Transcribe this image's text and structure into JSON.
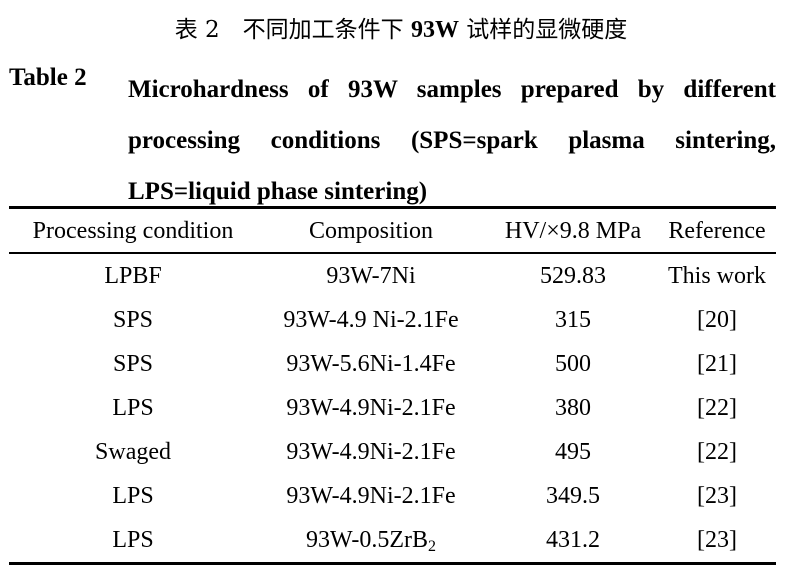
{
  "caption": {
    "cn_prefix": "表 2　不同加工条件下 ",
    "cn_bold": "93W",
    "cn_suffix": " 试样的显微硬度",
    "en_label": "Table 2",
    "en_text": "Microhardness of 93W samples prepared by different processing conditions (SPS=spark plasma sintering, LPS=liquid phase sintering)"
  },
  "table": {
    "headers": [
      "Processing condition",
      "Composition",
      "HV/×9.8 MPa",
      "Reference"
    ],
    "rows": [
      {
        "condition": "LPBF",
        "composition": "93W-7Ni",
        "hv": "529.83",
        "ref": "This work"
      },
      {
        "condition": "SPS",
        "composition": "93W-4.9 Ni-2.1Fe",
        "hv": "315",
        "ref": "[20]"
      },
      {
        "condition": "SPS",
        "composition": "93W-5.6Ni-1.4Fe",
        "hv": "500",
        "ref": "[21]"
      },
      {
        "condition": "LPS",
        "composition": "93W-4.9Ni-2.1Fe",
        "hv": "380",
        "ref": "[22]"
      },
      {
        "condition": "Swaged",
        "composition": "93W-4.9Ni-2.1Fe",
        "hv": "495",
        "ref": "[22]"
      },
      {
        "condition": "LPS",
        "composition": "93W-4.9Ni-2.1Fe",
        "hv": "349.5",
        "ref": "[23]"
      },
      {
        "condition": "LPS",
        "composition": "93W-0.5ZrB",
        "composition_sub": "2",
        "hv": "431.2",
        "ref": "[23]"
      }
    ]
  }
}
